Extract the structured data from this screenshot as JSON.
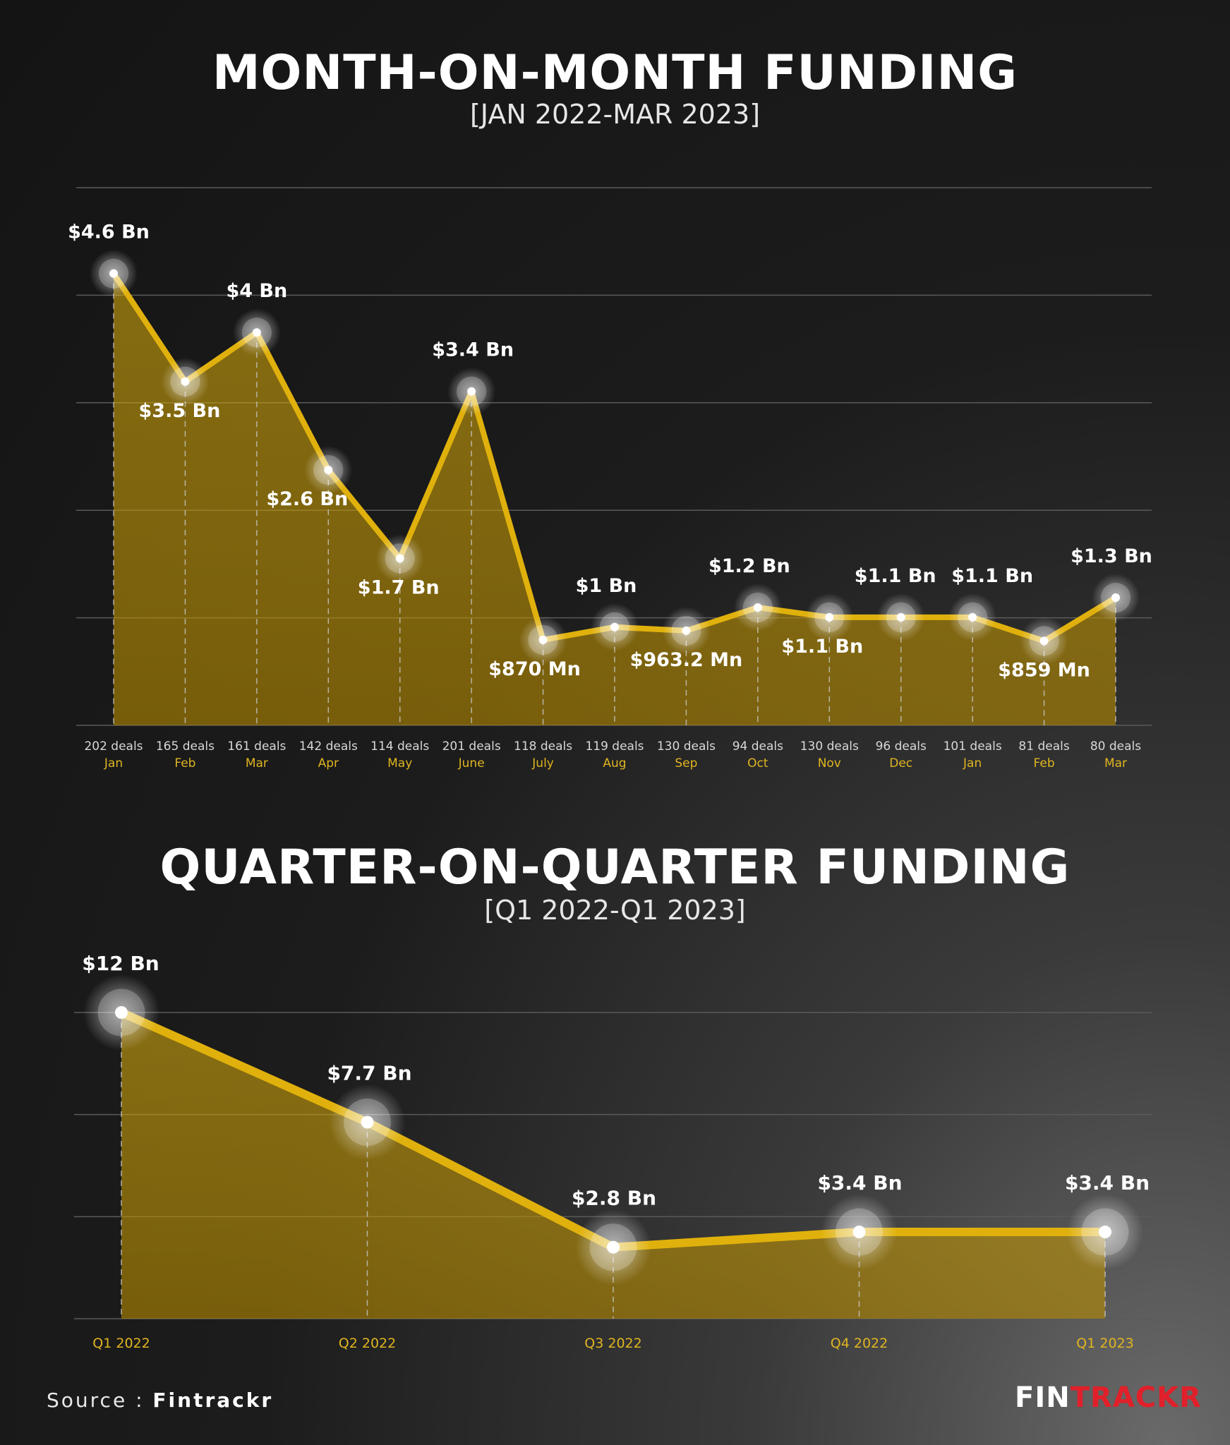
{
  "chart_data": [
    {
      "type": "area",
      "title": "MONTH-ON-MONTH FUNDING",
      "subtitle": "[JAN 2022-MAR 2023]",
      "unit": "USD Bn",
      "categories": [
        "Jan",
        "Feb",
        "Mar",
        "Apr",
        "May",
        "June",
        "July",
        "Aug",
        "Sep",
        "Oct",
        "Nov",
        "Dec",
        "Jan",
        "Feb",
        "Mar"
      ],
      "deals": [
        "202 deals",
        "165 deals",
        "161 deals",
        "142 deals",
        "114 deals",
        "201 deals",
        "118 deals",
        "119 deals",
        "130 deals",
        "94 deals",
        "130 deals",
        "96 deals",
        "101 deals",
        "81 deals",
        "80 deals"
      ],
      "values": [
        4.6,
        3.5,
        4.0,
        2.6,
        1.7,
        3.4,
        0.87,
        1.0,
        0.9632,
        1.2,
        1.1,
        1.1,
        1.1,
        0.859,
        1.3
      ],
      "value_labels": [
        "$4.6 Bn",
        "$3.5 Bn",
        "$4 Bn",
        "$2.6 Bn",
        "$1.7 Bn",
        "$3.4 Bn",
        "$870 Mn",
        "$1 Bn",
        "$963.2 Mn",
        "$1.2 Bn",
        "$1.1 Bn",
        "$1.1 Bn",
        "$1.1 Bn",
        "$859 Mn",
        "$1.3 Bn"
      ],
      "label_position": [
        "above",
        "below",
        "above",
        "below",
        "below",
        "above",
        "below",
        "above",
        "below",
        "above",
        "below",
        "above",
        "above",
        "below",
        "above"
      ],
      "ylim": [
        0,
        5
      ],
      "grid": true,
      "line_color": "#e0b10c"
    },
    {
      "type": "area",
      "title": "QUARTER-ON-QUARTER FUNDING",
      "subtitle": "[Q1 2022-Q1 2023]",
      "unit": "USD Bn",
      "categories": [
        "Q1 2022",
        "Q2 2022",
        "Q3 2022",
        "Q4 2022",
        "Q1 2023"
      ],
      "values": [
        12,
        7.7,
        2.8,
        3.4,
        3.4
      ],
      "value_labels": [
        "$12 Bn",
        "$7.7 Bn",
        "$2.8 Bn",
        "$3.4 Bn",
        "$3.4 Bn"
      ],
      "ylim": [
        0,
        12
      ],
      "grid": true,
      "line_color": "#e0b10c"
    }
  ],
  "footer": {
    "source_prefix": "Source : ",
    "source_name": "Fintrackr",
    "logo_part1": "FIN",
    "logo_part2": "TRACKR",
    "logo_accent_color": "#e0202a"
  }
}
